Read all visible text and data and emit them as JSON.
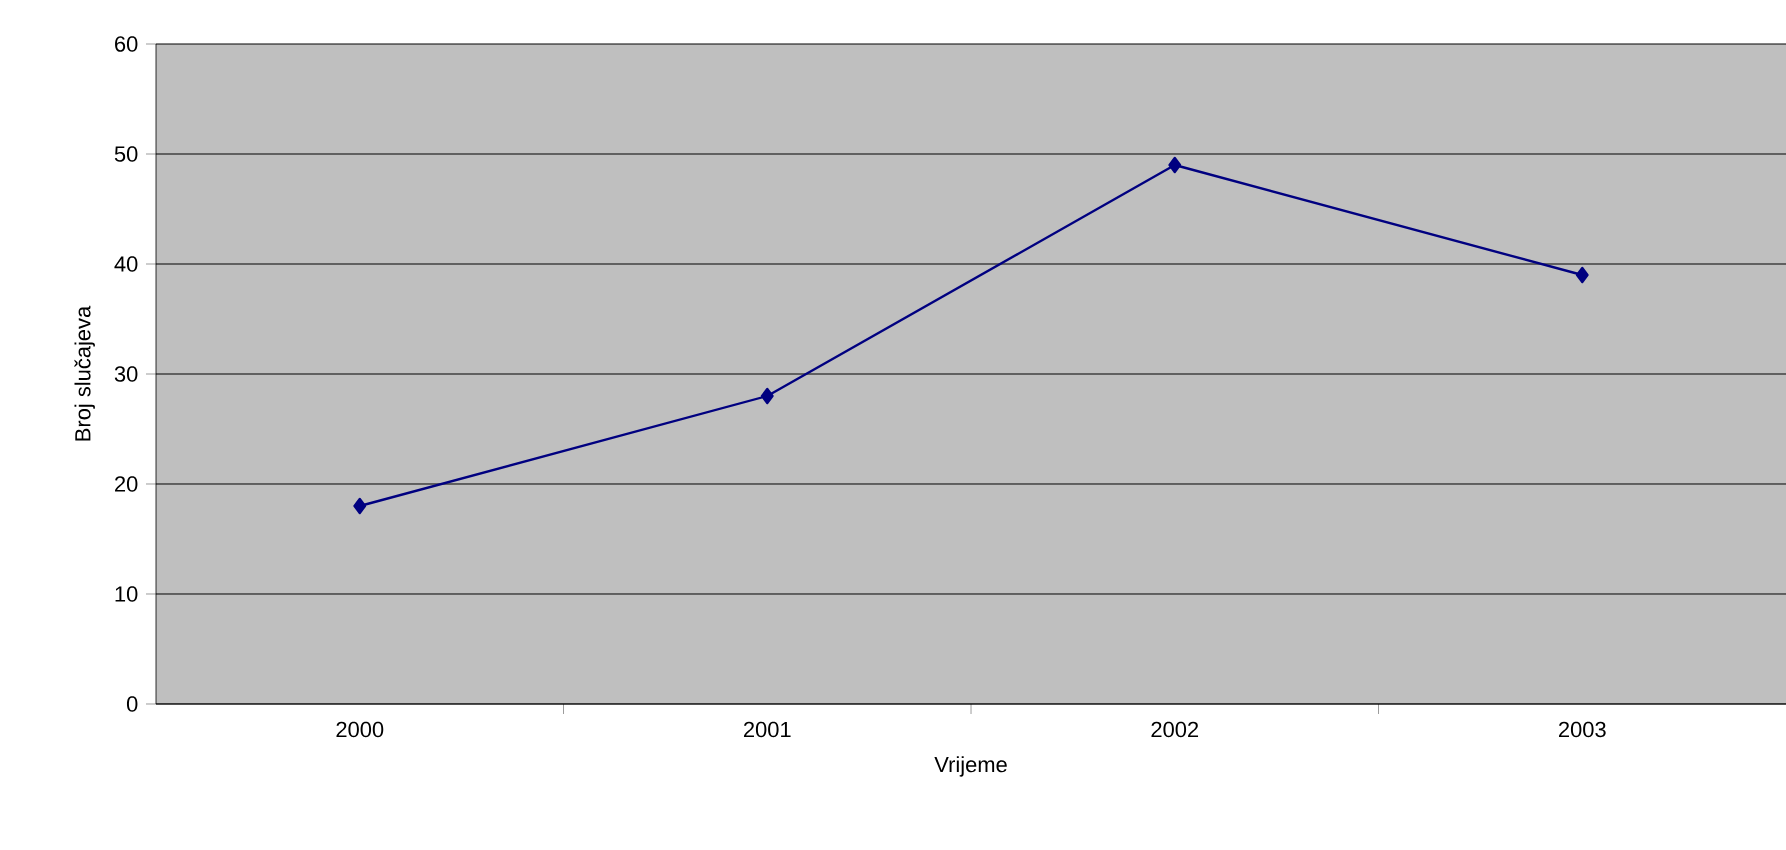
{
  "chart_data": {
    "type": "line",
    "xlabel": "Vrijeme",
    "ylabel": "Broj slučajeva",
    "categories": [
      "2000",
      "2001",
      "2002",
      "2003"
    ],
    "series": [
      {
        "color": "#000080",
        "values": [
          18,
          28,
          49,
          39
        ]
      }
    ],
    "ylim": [
      0,
      60
    ],
    "yticks": [
      0,
      10,
      20,
      30,
      40,
      50,
      60
    ],
    "grid": "y",
    "marker": "diamond",
    "line_style": "solid"
  }
}
